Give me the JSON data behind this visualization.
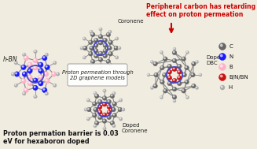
{
  "bg_color": "#f0ece0",
  "annotation_text": "Peripheral carbon has retarding\neffect on proton permeation",
  "annotation_color": "#cc0000",
  "bottom_text_line1": "Proton permation barrier is 0.03",
  "bottom_text_line2": "eV for hexaboron doped",
  "center_box_text": "Proton permeation through\n2D graphene models",
  "labels": {
    "hBN": "h-BN",
    "coronene": "Coronene",
    "doped_coronene": "Doped\nCoronene",
    "doped_DBC": "Doped\nDBC"
  },
  "legend_items": [
    "C",
    "N",
    "B",
    "B/N/BN",
    "H"
  ],
  "legend_colors": [
    "#666666",
    "#1a1aff",
    "#ffb0c8",
    "#cc1111",
    "#aaaaaa"
  ],
  "legend_sizes": [
    4.5,
    4.5,
    4.5,
    4.5,
    3.0
  ],
  "circle_color": "#4444cc",
  "circle_lw": 1.2,
  "C_color": "#666666",
  "N_color": "#1a1aff",
  "B_color": "#ffb0c8",
  "BN_color": "#cc1111",
  "H_color": "#aaaaaa",
  "bond_color": "#888888"
}
